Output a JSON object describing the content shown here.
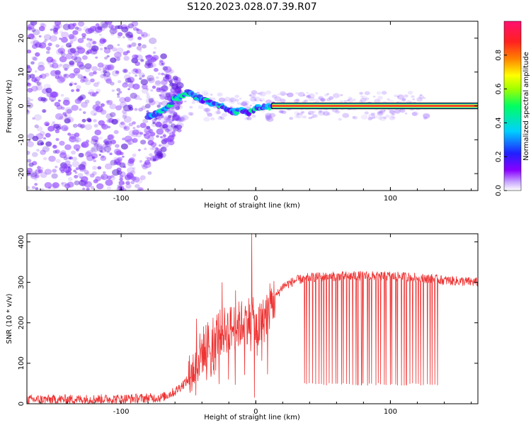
{
  "figure_title": "S120.2023.028.07.39.R07",
  "colors": {
    "track_line": "#000000",
    "track_center": "#e8103a",
    "snr_line": "#ee3333",
    "colorbar_stops": [
      "#8a00ff",
      "#2020ff",
      "#00d0ff",
      "#00ff60",
      "#a0ff00",
      "#ffff00",
      "#ff8000",
      "#ff2020",
      "#ff1070"
    ]
  },
  "chart_data": [
    {
      "type": "heatmap",
      "title": "",
      "xlabel": "Height of straight line (km)",
      "ylabel": "Frequency (Hz)",
      "xlim": [
        -170,
        165
      ],
      "ylim": [
        -25,
        25
      ],
      "xticks": [
        "-100",
        "0",
        "100"
      ],
      "xtick_values": [
        -100,
        0,
        100
      ],
      "yticks": [
        "-20",
        "-10",
        "0",
        "10",
        "20"
      ],
      "ytick_values": [
        -20,
        -10,
        0,
        10,
        20
      ],
      "colorbar": {
        "label": "Normalized spectral amplitude",
        "range": [
          0,
          1
        ],
        "ticks": [
          "0.0",
          "0.2",
          "0.4",
          "0.6",
          "0.8"
        ],
        "tick_values": [
          0,
          0.2,
          0.4,
          0.6,
          0.8
        ]
      },
      "ridge": {
        "x": [
          -80,
          -70,
          -65,
          -60,
          -55,
          -50,
          -45,
          -40,
          -35,
          -30,
          -25,
          -20,
          -15,
          -10,
          -5,
          0,
          5,
          10,
          20,
          50,
          100,
          165
        ],
        "y": [
          -3,
          -2,
          0,
          2,
          3,
          4,
          3,
          2,
          1,
          0.5,
          0,
          -1,
          -2,
          -1,
          -2,
          -0.5,
          -0.5,
          0,
          0,
          0,
          0,
          0
        ]
      },
      "noise_region": {
        "x_from": -170,
        "x_to": -70,
        "y_spread": 25
      }
    },
    {
      "type": "line",
      "title": "",
      "xlabel": "Height of straight line (km)",
      "ylabel": "SNR (10 * v/v)",
      "xlim": [
        -170,
        165
      ],
      "ylim": [
        0,
        420
      ],
      "xticks": [
        "-100",
        "0",
        "100"
      ],
      "xtick_values": [
        -100,
        0,
        100
      ],
      "yticks": [
        "0",
        "100",
        "200",
        "300",
        "400"
      ],
      "ytick_values": [
        0,
        100,
        200,
        300,
        400
      ],
      "envelope": {
        "x": [
          -170,
          -100,
          -70,
          -60,
          -50,
          -45,
          -40,
          -35,
          -30,
          -25,
          -20,
          -15,
          -10,
          -5,
          -3,
          0,
          5,
          10,
          20,
          30,
          40,
          60,
          80,
          100,
          120,
          140,
          165
        ],
        "y": [
          10,
          12,
          15,
          30,
          60,
          90,
          130,
          150,
          170,
          180,
          185,
          190,
          200,
          210,
          215,
          180,
          200,
          240,
          290,
          305,
          312,
          315,
          316,
          315,
          312,
          305,
          300
        ]
      },
      "noise_amplitude": 12,
      "dropouts": {
        "x_from": 35,
        "x_to": 137,
        "y": 45,
        "count": 48
      },
      "spikes": [
        {
          "x": -44,
          "y": 210
        },
        {
          "x": -25,
          "y": 300
        },
        {
          "x": -15,
          "y": 280
        },
        {
          "x": -3,
          "y": 420
        },
        {
          "x": -1,
          "y": 15
        }
      ]
    }
  ]
}
